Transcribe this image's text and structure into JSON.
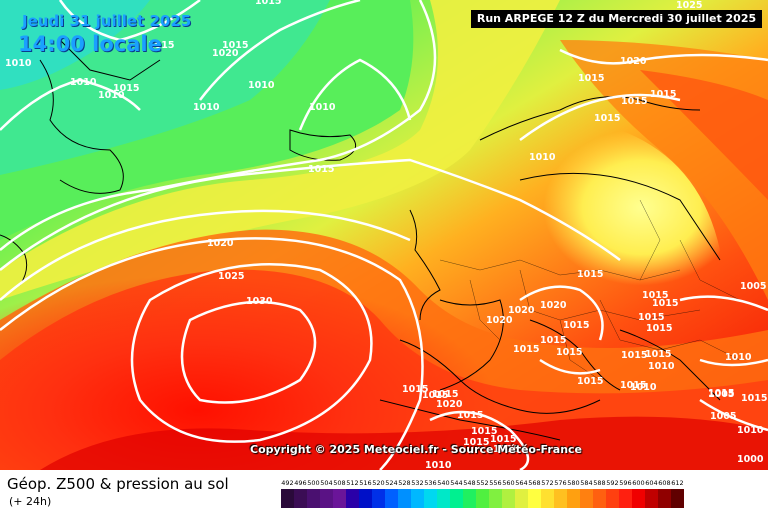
{
  "header": {
    "valid_date": "Jeudi 31 juillet 2025",
    "valid_time": "14:00 locale",
    "run_info": "Run ARPEGE 12 Z du Mercredi 30 juillet 2025"
  },
  "map": {
    "copyright": "Copyright © 2025 Meteociel.fr - Source Météo-France",
    "isobar_labels": [
      "1015",
      "1015",
      "1010",
      "1015",
      "1020",
      "1010",
      "1015",
      "1010",
      "1010",
      "1010",
      "1010",
      "1015",
      "1020",
      "1015",
      "1015",
      "1015",
      "1010",
      "1015",
      "1025",
      "1020",
      "1025",
      "1030",
      "1005",
      "1020",
      "1020",
      "1020",
      "1015",
      "1015",
      "1015",
      "1015",
      "1015",
      "1015",
      "1015",
      "1015",
      "1015",
      "1015",
      "1015",
      "1015",
      "1015",
      "1015",
      "1015",
      "1015",
      "1015",
      "1010",
      "1010",
      "1010",
      "1005",
      "1005",
      "1015",
      "1020",
      "1015",
      "1015",
      "1015",
      "1015",
      "1010",
      "1010",
      "1015",
      "1000"
    ],
    "high_pressure_center": "1030",
    "colors": {
      "contour": "#ffffff",
      "coast": "#000000"
    }
  },
  "legend": {
    "title": "Géop. Z500 & pression au sol",
    "subtitle": "(+ 24h)",
    "values": [
      "492",
      "496",
      "500",
      "504",
      "508",
      "512",
      "516",
      "520",
      "524",
      "528",
      "532",
      "536",
      "540",
      "544",
      "548",
      "552",
      "556",
      "560",
      "564",
      "568",
      "572",
      "576",
      "580",
      "584",
      "588",
      "592",
      "596",
      "600",
      "604",
      "608",
      "612"
    ],
    "colors": [
      "#2a0a3a",
      "#3b0d55",
      "#4a1070",
      "#5a1285",
      "#6a1599",
      "#2a00a8",
      "#0010c8",
      "#0030e8",
      "#0060ff",
      "#0090ff",
      "#00b8ff",
      "#00d8f0",
      "#00e8c8",
      "#00f090",
      "#20f060",
      "#50f040",
      "#80f040",
      "#b0f040",
      "#e0f040",
      "#ffff40",
      "#ffe030",
      "#ffc020",
      "#ffa010",
      "#ff8010",
      "#ff6010",
      "#ff4010",
      "#ff2010",
      "#f00000",
      "#c00000",
      "#900000",
      "#600000"
    ]
  }
}
